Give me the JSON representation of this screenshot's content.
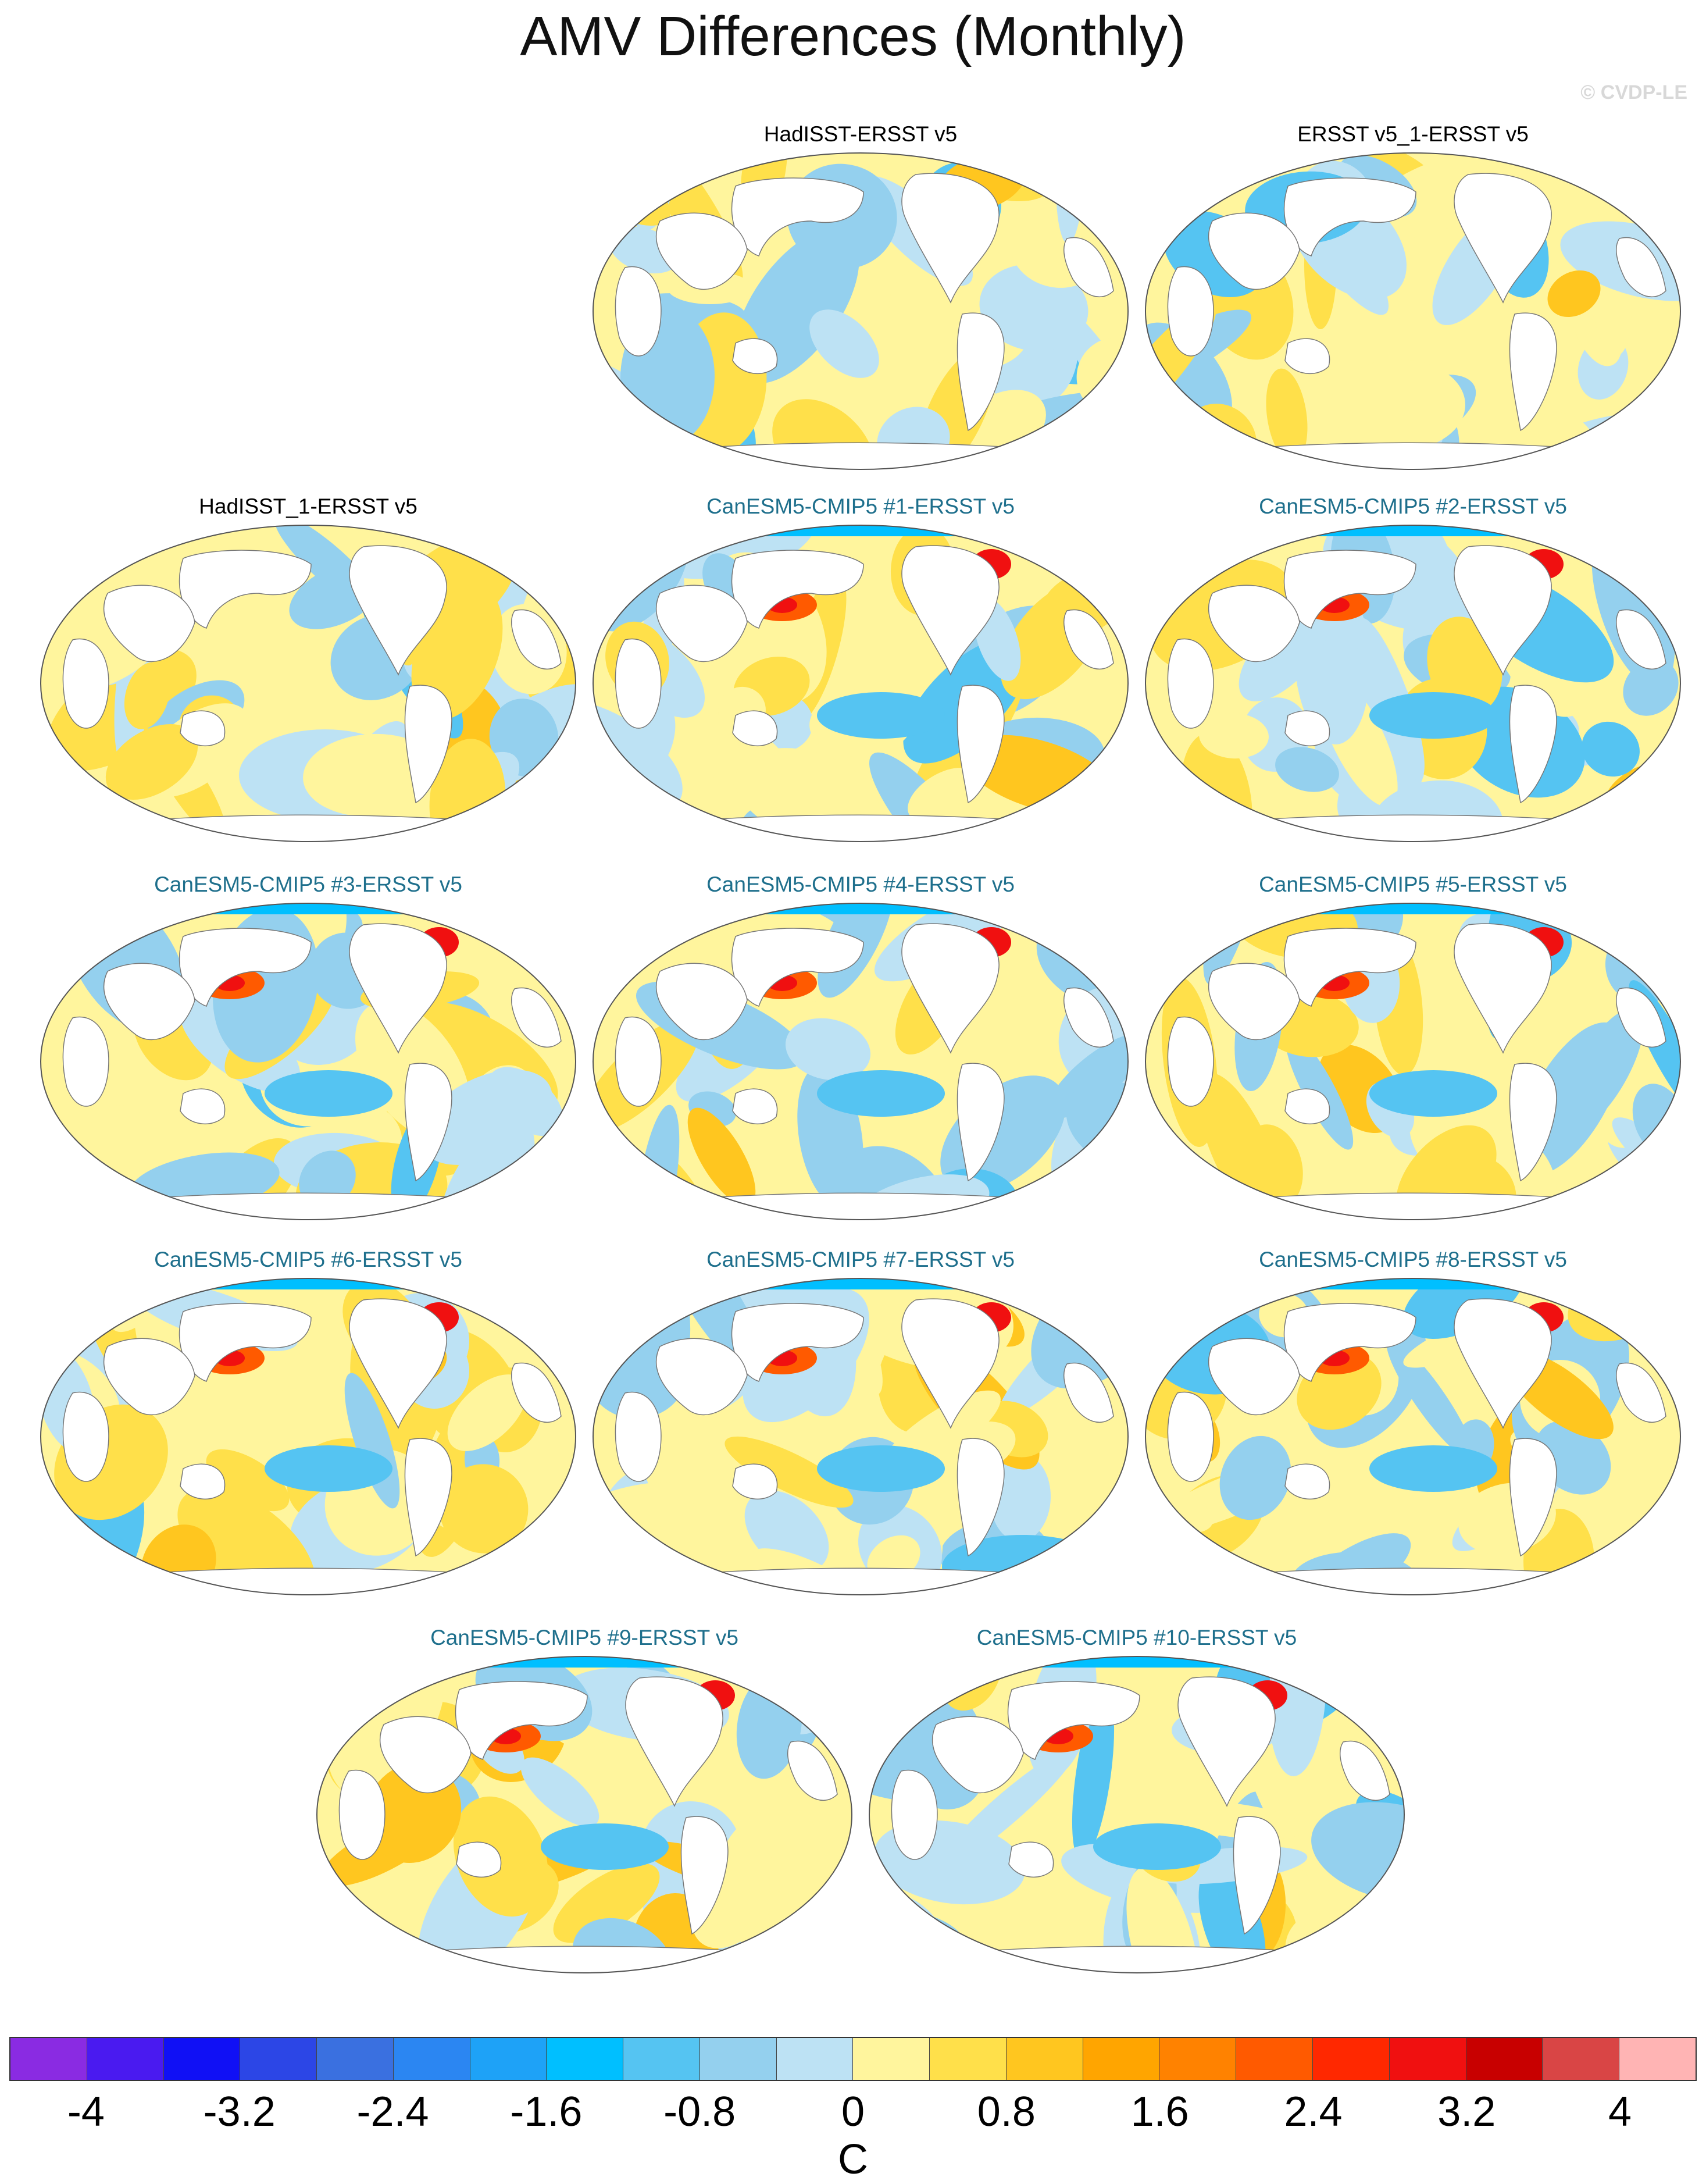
{
  "title": "AMV Differences (Monthly)",
  "copyright": "© CVDP-LE",
  "panels": [
    {
      "title": "HadISST-ERSST v5",
      "kind": "obs"
    },
    {
      "title": "ERSST v5_1-ERSST v5",
      "kind": "obs"
    },
    {
      "title": "HadISST_1-ERSST v5",
      "kind": "obs"
    },
    {
      "title": "CanESM5-CMIP5 #1-ERSST v5",
      "kind": "model"
    },
    {
      "title": "CanESM5-CMIP5 #2-ERSST v5",
      "kind": "model"
    },
    {
      "title": "CanESM5-CMIP5 #3-ERSST v5",
      "kind": "model"
    },
    {
      "title": "CanESM5-CMIP5 #4-ERSST v5",
      "kind": "model"
    },
    {
      "title": "CanESM5-CMIP5 #5-ERSST v5",
      "kind": "model"
    },
    {
      "title": "CanESM5-CMIP5 #6-ERSST v5",
      "kind": "model"
    },
    {
      "title": "CanESM5-CMIP5 #7-ERSST v5",
      "kind": "model"
    },
    {
      "title": "CanESM5-CMIP5 #8-ERSST v5",
      "kind": "model"
    },
    {
      "title": "CanESM5-CMIP5 #9-ERSST v5",
      "kind": "model"
    },
    {
      "title": "CanESM5-CMIP5 #10-ERSST v5",
      "kind": "model"
    }
  ],
  "colorbar": {
    "colors": [
      "#8a2be2",
      "#4a1af0",
      "#1010f5",
      "#2c46e6",
      "#3a70e0",
      "#2b86f2",
      "#1ea2f7",
      "#00bfff",
      "#55c4f2",
      "#94d0ee",
      "#bde2f4",
      "#fff59d",
      "#ffe04a",
      "#ffc61f",
      "#ffa500",
      "#ff8200",
      "#ff5a00",
      "#ff2800",
      "#f01010",
      "#c80000",
      "#d94545",
      "#ffb4b4"
    ],
    "ticks": [
      "-4",
      "-3.2",
      "-2.4",
      "-1.6",
      "-0.8",
      "0",
      "0.8",
      "1.6",
      "2.4",
      "3.2",
      "4"
    ],
    "unit": "C"
  }
}
